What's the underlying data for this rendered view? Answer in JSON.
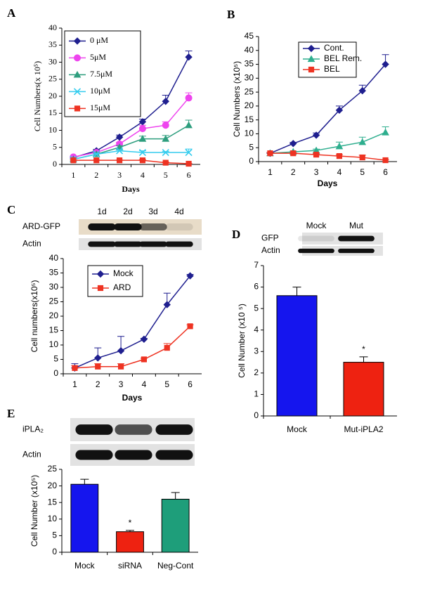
{
  "chart_data": [
    {
      "type": "line",
      "panel_label": "A",
      "x_label": "Days",
      "y_label": "Cell Numbers(x 10⁵)",
      "categories": [
        "1",
        "2",
        "3",
        "4",
        "5",
        "6"
      ],
      "ylim": [
        0,
        40
      ],
      "yticks": [
        0,
        5,
        10,
        15,
        20,
        25,
        30,
        35,
        40
      ],
      "series": [
        {
          "name": "0 μM",
          "color": "#1f1f8f",
          "marker": "diamond",
          "values": [
            2,
            4,
            8,
            12.5,
            18.5,
            31.5
          ],
          "errors": [
            0.3,
            0.4,
            0.6,
            0.8,
            1.8,
            1.8
          ]
        },
        {
          "name": "5μM",
          "color": "#ee44ee",
          "marker": "circle",
          "values": [
            2.2,
            3.5,
            6,
            10.5,
            11.5,
            19.5
          ],
          "errors": [
            0.2,
            0.3,
            0.5,
            1,
            1,
            1.5
          ]
        },
        {
          "name": "7.5μM",
          "color": "#2e9e7e",
          "marker": "triangle",
          "values": [
            1.5,
            3,
            5,
            7.5,
            7.5,
            11.5
          ],
          "errors": [
            0.2,
            0.3,
            0.5,
            0.8,
            1,
            1.5
          ]
        },
        {
          "name": "10μM",
          "color": "#33ccee",
          "marker": "x",
          "values": [
            1.5,
            3,
            4,
            3.5,
            3.5,
            3.5
          ],
          "errors": [
            0.2,
            0.2,
            0.3,
            0.5,
            0.3,
            1
          ]
        },
        {
          "name": "15μM",
          "color": "#ee3322",
          "marker": "square",
          "values": [
            1.2,
            1.2,
            1.2,
            1.2,
            0.5,
            0.2
          ],
          "errors": [
            0.1,
            0.1,
            0.1,
            0.2,
            0.2,
            0.1
          ]
        }
      ]
    },
    {
      "type": "line",
      "panel_label": "B",
      "x_label": "Days",
      "y_label": "Cell Numbers (x10⁵)",
      "categories": [
        "1",
        "2",
        "3",
        "4",
        "5",
        "6"
      ],
      "ylim": [
        0,
        45
      ],
      "yticks": [
        0,
        5,
        10,
        15,
        20,
        25,
        30,
        35,
        40,
        45
      ],
      "series": [
        {
          "name": "Cont.",
          "color": "#1f1f8f",
          "marker": "diamond",
          "values": [
            3,
            6.5,
            9.5,
            18.5,
            25.5,
            35
          ],
          "errors": [
            0.3,
            0.4,
            0.8,
            1.5,
            2,
            3.5
          ]
        },
        {
          "name": "BEL Rem.",
          "color": "#2eae8e",
          "marker": "triangle",
          "values": [
            3,
            3.5,
            4,
            5.5,
            7,
            10.5
          ],
          "errors": [
            0.2,
            0.3,
            0.5,
            1.5,
            1.8,
            2
          ]
        },
        {
          "name": "BEL",
          "color": "#ee3322",
          "marker": "square",
          "values": [
            3,
            3,
            2.5,
            2,
            1.5,
            0.5
          ],
          "errors": [
            0.2,
            0.2,
            0.3,
            0.5,
            0.8,
            0.2
          ]
        }
      ]
    },
    {
      "type": "line",
      "panel_label": "C",
      "x_label": "Days",
      "y_label": "Cell numbers(x10⁵)",
      "blot": {
        "lanes": [
          "1d",
          "2d",
          "3d",
          "4d"
        ],
        "rows": [
          "ARD-GFP",
          "Actin"
        ]
      },
      "categories": [
        "1",
        "2",
        "3",
        "4",
        "5",
        "6"
      ],
      "ylim": [
        0,
        40
      ],
      "yticks": [
        0,
        5,
        10,
        15,
        20,
        25,
        30,
        35,
        40
      ],
      "series": [
        {
          "name": "Mock",
          "color": "#1f1f8f",
          "marker": "diamond",
          "values": [
            2,
            5.5,
            8,
            12,
            24,
            34
          ],
          "errors": [
            1.5,
            3.5,
            5,
            0.3,
            4,
            0.5
          ]
        },
        {
          "name": "ARD",
          "color": "#ee3322",
          "marker": "square",
          "values": [
            2,
            2.5,
            2.5,
            5,
            9,
            16.5
          ],
          "errors": [
            0.8,
            1,
            1,
            0.4,
            1.5,
            0.5
          ]
        }
      ]
    },
    {
      "type": "bar",
      "panel_label": "D",
      "y_label": "Cell Number (x10 ⁵)",
      "annotation": "*",
      "blot": {
        "lanes": [
          "Mock",
          "Mut"
        ],
        "rows": [
          "GFP",
          "Actin"
        ]
      },
      "categories": [
        "Mock",
        "Mut-iPLA2"
      ],
      "values": [
        5.6,
        2.5
      ],
      "errors": [
        0.4,
        0.25
      ],
      "colors": [
        "#1515ee",
        "#ee2211"
      ],
      "ylim": [
        0,
        7
      ],
      "yticks": [
        0,
        1,
        2,
        3,
        4,
        5,
        6,
        7
      ]
    },
    {
      "type": "bar",
      "panel_label": "E",
      "y_label": "Cell Number (x10⁵)",
      "annotation": "*",
      "blot": {
        "lanes": [],
        "rows": [
          "iPLA₂",
          "Actin"
        ]
      },
      "categories": [
        "Mock",
        "siRNA",
        "Neg-Cont"
      ],
      "values": [
        20.5,
        6.2,
        16
      ],
      "errors": [
        1.5,
        0.4,
        2
      ],
      "colors": [
        "#1515ee",
        "#ee2211",
        "#1e9e7a"
      ],
      "ylim": [
        0,
        25
      ],
      "yticks": [
        0,
        5,
        10,
        15,
        20,
        25
      ]
    }
  ]
}
